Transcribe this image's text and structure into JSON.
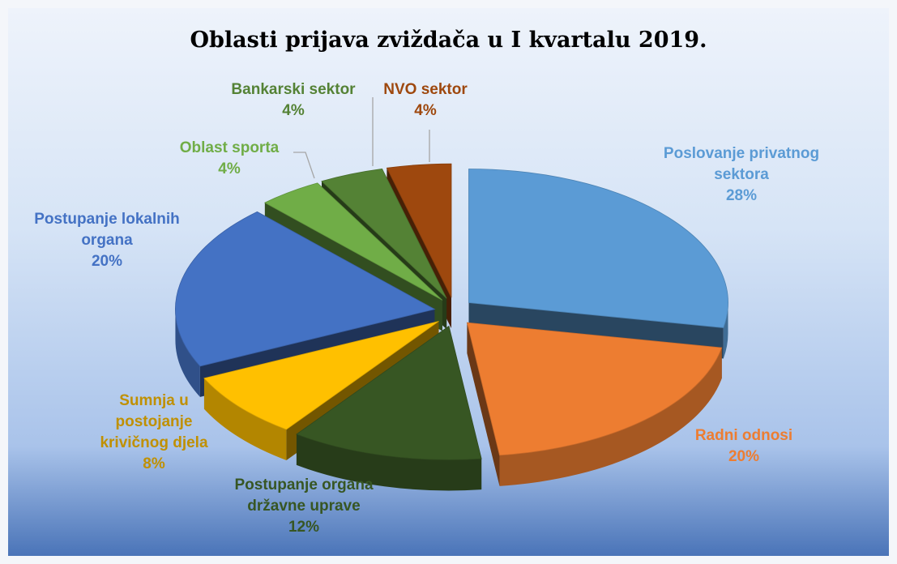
{
  "chart_data": {
    "type": "pie",
    "title": "Oblasti prijava zviždača u I kvartalu 2019.",
    "categories": [
      "Poslovanje privatnog sektora",
      "Radni odnosi",
      "Postupanje organa državne uprave",
      "Sumnja u postojanje krivičnog djela",
      "Postupanje lokalnih organa",
      "Oblast sporta",
      "Bankarski sektor",
      "NVO sektor"
    ],
    "values": [
      28,
      20,
      12,
      8,
      20,
      4,
      4,
      4
    ],
    "value_labels": [
      "28%",
      "20%",
      "12%",
      "8%",
      "20%",
      "4%",
      "4%",
      "4%"
    ],
    "colors": [
      "#5b9bd5",
      "#ed7d31",
      "#375623",
      "#ffc000",
      "#4472c4",
      "#70ad47",
      "#548235",
      "#9e480e"
    ]
  }
}
